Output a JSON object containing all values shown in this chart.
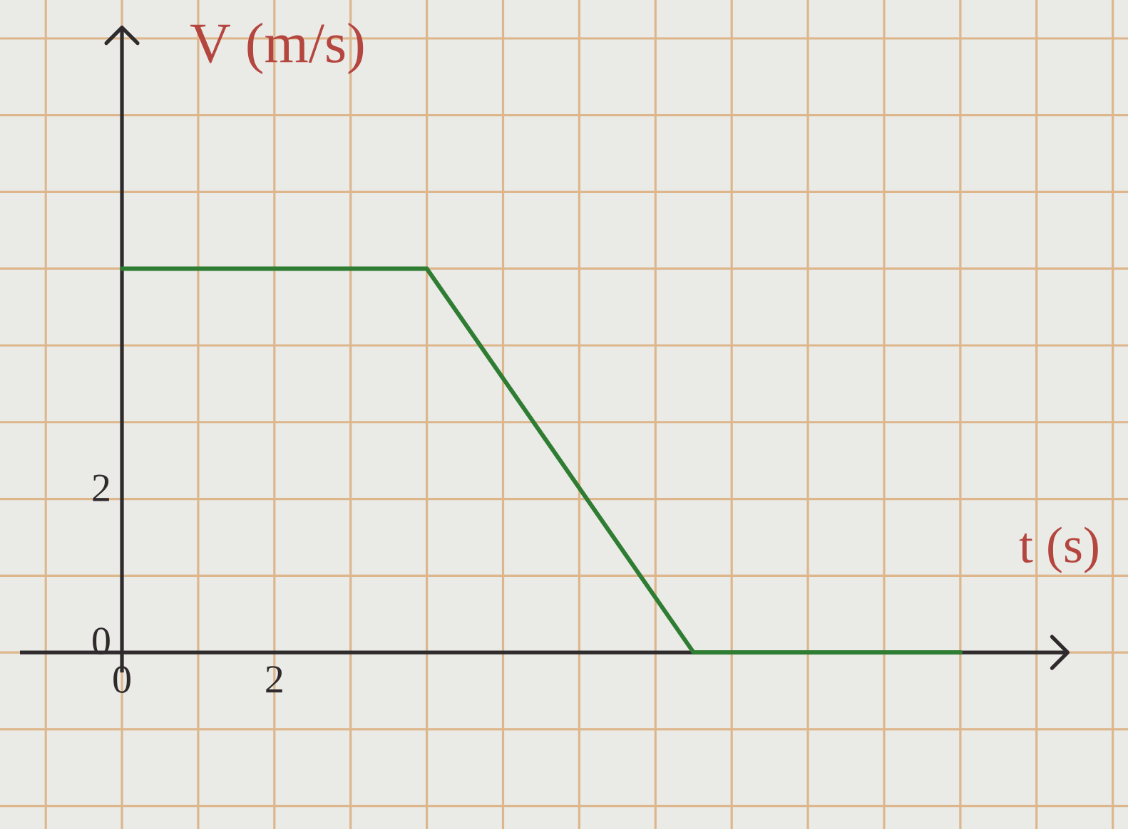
{
  "chart_data": {
    "type": "line",
    "xlabel": "t (s)",
    "ylabel": "V (m/s)",
    "x": [
      0,
      4,
      7.5,
      11
    ],
    "series": [
      {
        "color": "#2e7d32",
        "values": [
          5,
          5,
          0,
          0
        ]
      }
    ],
    "xlim": [
      -1.6,
      13.2
    ],
    "ylim": [
      -2.3,
      8.5
    ],
    "xticks": [
      {
        "value": -1,
        "label": null
      },
      0,
      {
        "value": 1,
        "label": null
      },
      2,
      {
        "value": 3,
        "label": null
      },
      {
        "value": 4,
        "label": null
      },
      {
        "value": 5,
        "label": null
      },
      {
        "value": 6,
        "label": null
      },
      {
        "value": 7,
        "label": null
      },
      {
        "value": 8,
        "label": null
      },
      {
        "value": 9,
        "label": null
      },
      {
        "value": 10,
        "label": null
      },
      {
        "value": 11,
        "label": null
      },
      {
        "value": 12,
        "label": null
      },
      {
        "value": 13,
        "label": null
      }
    ],
    "yticks": [
      {
        "value": -2,
        "label": null
      },
      {
        "value": -1,
        "label": null
      },
      0,
      {
        "value": 1,
        "label": null
      },
      2,
      {
        "value": 3,
        "label": null
      },
      {
        "value": 4,
        "label": null
      },
      {
        "value": 5,
        "label": null
      },
      {
        "value": 6,
        "label": null
      },
      {
        "value": 7,
        "label": null
      },
      {
        "value": 8,
        "label": null
      }
    ],
    "grid": true
  }
}
